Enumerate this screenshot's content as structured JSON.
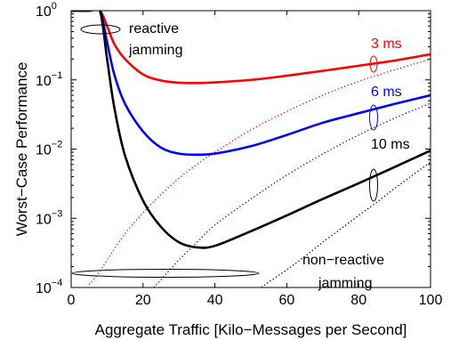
{
  "chart_data": {
    "type": "line",
    "xlabel": "Aggregate Traffic [Kilo−Messages per Second]",
    "ylabel": "Worst−Case Performance",
    "xlim": [
      0,
      100
    ],
    "ylim_log10": [
      -4,
      0
    ],
    "y_scale": "log",
    "x_ticks": [
      "0",
      "20",
      "40",
      "60",
      "80",
      "100"
    ],
    "x_tick_values": [
      0,
      20,
      40,
      60,
      80,
      100
    ],
    "y_ticks": [
      {
        "base": "10",
        "exp": "0",
        "value": 1
      },
      {
        "base": "10",
        "exp": "−1",
        "value": 0.1
      },
      {
        "base": "10",
        "exp": "−2",
        "value": 0.01
      },
      {
        "base": "10",
        "exp": "−3",
        "value": 0.001
      },
      {
        "base": "10",
        "exp": "−4",
        "value": 0.0001
      }
    ],
    "series": [
      {
        "name": "3 ms",
        "color": "#ff0000",
        "style": "solid",
        "x": [
          0,
          5,
          8,
          10,
          12,
          15,
          20,
          25,
          30,
          35,
          40,
          50,
          60,
          70,
          80,
          90,
          100
        ],
        "y": [
          1,
          1,
          1,
          0.6,
          0.33,
          0.2,
          0.12,
          0.098,
          0.091,
          0.09,
          0.092,
          0.1,
          0.115,
          0.135,
          0.16,
          0.19,
          0.235
        ]
      },
      {
        "name": "6 ms",
        "color": "#0000ff",
        "style": "solid",
        "x": [
          0,
          5,
          8,
          10,
          12,
          15,
          20,
          25,
          30,
          35,
          40,
          50,
          60,
          70,
          80,
          90,
          100
        ],
        "y": [
          1,
          1,
          1,
          0.35,
          0.12,
          0.045,
          0.018,
          0.0105,
          0.0086,
          0.0083,
          0.0086,
          0.011,
          0.016,
          0.024,
          0.033,
          0.045,
          0.06
        ]
      },
      {
        "name": "10 ms",
        "color": "#000000",
        "style": "solid",
        "x": [
          0,
          5,
          8,
          10,
          12,
          15,
          20,
          25,
          30,
          35,
          40,
          50,
          60,
          70,
          80,
          90,
          100
        ],
        "y": [
          1,
          1,
          1,
          0.2,
          0.04,
          0.008,
          0.0018,
          0.00075,
          0.00045,
          0.00038,
          0.0004,
          0.00065,
          0.0011,
          0.0019,
          0.0032,
          0.0055,
          0.0095
        ]
      },
      {
        "name": "3 ms non-reactive",
        "color": "#ff0000",
        "style": "dotted",
        "x": [
          5,
          8,
          10,
          15,
          20,
          25,
          30,
          35,
          40,
          50,
          60,
          70,
          80,
          90,
          100
        ],
        "y": [
          0.00011,
          0.00017,
          0.00025,
          0.0006,
          0.0012,
          0.0022,
          0.0038,
          0.006,
          0.009,
          0.019,
          0.035,
          0.06,
          0.095,
          0.14,
          0.2
        ]
      },
      {
        "name": "6 ms non-reactive",
        "color": "#0000ff",
        "style": "dotted",
        "x": [
          23,
          25,
          30,
          35,
          40,
          50,
          60,
          70,
          80,
          90,
          100
        ],
        "y": [
          0.0001,
          0.00013,
          0.00025,
          0.00045,
          0.0008,
          0.0019,
          0.0042,
          0.0085,
          0.016,
          0.028,
          0.046
        ]
      },
      {
        "name": "10 ms non-reactive",
        "color": "#000000",
        "style": "dotted",
        "x": [
          53,
          55,
          60,
          65,
          70,
          75,
          80,
          85,
          90,
          95,
          100
        ],
        "y": [
          0.0001,
          0.00012,
          0.00018,
          0.00028,
          0.00045,
          0.0007,
          0.0011,
          0.0017,
          0.0027,
          0.0042,
          0.0065
        ]
      }
    ],
    "annotations": [
      {
        "text": "reactive",
        "role": "reactive-line1"
      },
      {
        "text": "jamming",
        "role": "reactive-line2"
      },
      {
        "text": "non−reactive",
        "role": "nonreactive-line1"
      },
      {
        "text": "jamming",
        "role": "nonreactive-line2"
      },
      {
        "text": "3 ms",
        "color": "#ff0000",
        "role": "label-3ms"
      },
      {
        "text": "6 ms",
        "color": "#0000ff",
        "role": "label-6ms"
      },
      {
        "text": "10 ms",
        "color": "#000000",
        "role": "label-10ms"
      }
    ],
    "grid": false
  }
}
